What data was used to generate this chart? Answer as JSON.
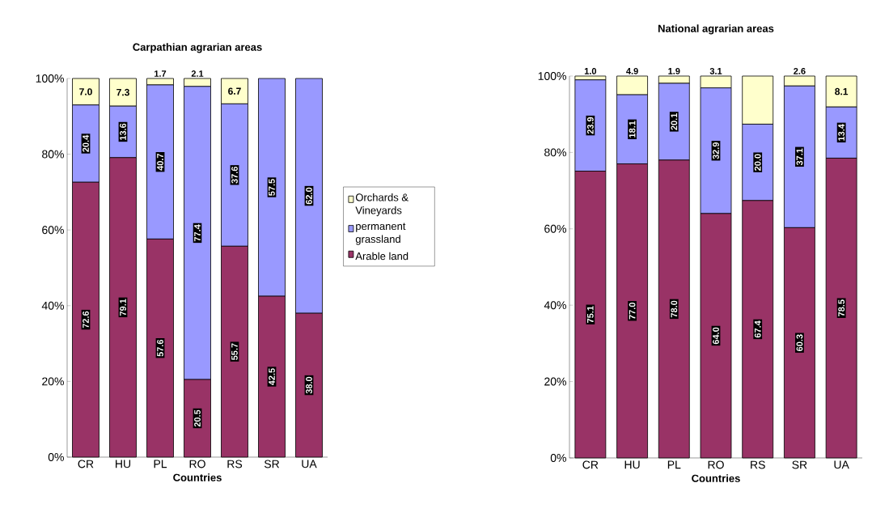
{
  "chart_data": [
    {
      "type": "bar",
      "stacked": true,
      "title": "Carpathian agrarian areas",
      "xlabel": "Countries",
      "categories": [
        "CR",
        "HU",
        "PL",
        "RO",
        "RS",
        "SR",
        "UA"
      ],
      "series": [
        {
          "name": "Arable land",
          "color": "#993366",
          "values": [
            72.6,
            79.1,
            57.6,
            20.5,
            55.7,
            42.5,
            38.0
          ],
          "value_labels": [
            "72.6",
            "79.1",
            "57.6",
            "20.5",
            "55.7",
            "42.5",
            "38.0"
          ]
        },
        {
          "name": "permanent grassland",
          "color": "#9999ff",
          "values": [
            20.4,
            13.6,
            40.7,
            77.4,
            37.6,
            57.5,
            62.0
          ],
          "value_labels": [
            "20.4",
            "13.6",
            "40.7",
            "77.4",
            "37.6",
            "57.5",
            "62.0"
          ]
        },
        {
          "name": "Orchards & Vineyards",
          "color": "#ffffcc",
          "values": [
            7.0,
            7.3,
            1.7,
            2.1,
            6.7,
            0,
            0
          ],
          "value_labels": [
            "7.0",
            "7.3",
            "1.7",
            "2.1",
            "6.7",
            null,
            null
          ]
        }
      ],
      "ylim": [
        0,
        100
      ],
      "yticks": [
        {
          "value": 0,
          "label": "0%"
        },
        {
          "value": 20,
          "label": "20%"
        },
        {
          "value": 40,
          "label": "40%"
        },
        {
          "value": 60,
          "label": "60%"
        },
        {
          "value": 80,
          "label": "80%"
        },
        {
          "value": 100,
          "label": "100%"
        }
      ],
      "legend": "right"
    },
    {
      "type": "bar",
      "stacked": true,
      "title": "National agrarian areas",
      "xlabel": "Countries",
      "categories": [
        "CR",
        "HU",
        "PL",
        "RO",
        "RS",
        "SR",
        "UA"
      ],
      "series": [
        {
          "color": "#993366",
          "values": [
            75.1,
            77.0,
            78.0,
            64.0,
            67.4,
            60.3,
            78.5
          ],
          "value_labels": [
            "75.1",
            "77.0",
            "78.0",
            "64.0",
            "67.4",
            "60.3",
            "78.5"
          ]
        },
        {
          "color": "#9999ff",
          "values": [
            23.9,
            18.1,
            20.1,
            32.9,
            20.0,
            37.1,
            13.4
          ],
          "value_labels": [
            "23.9",
            "18.1",
            "20.1",
            "32.9",
            "20.0",
            "37.1",
            "13.4"
          ]
        },
        {
          "color": "#ffffcc",
          "values": [
            1.0,
            4.9,
            1.9,
            3.1,
            12.6,
            2.6,
            8.1
          ],
          "value_labels": [
            "1.0",
            "4.9",
            "1.9",
            "3.1",
            null,
            "2.6",
            "8.1"
          ]
        }
      ],
      "ylim": [
        0,
        100
      ],
      "yticks": [
        {
          "value": 0,
          "label": "0%"
        },
        {
          "value": 20,
          "label": "20%"
        },
        {
          "value": 40,
          "label": "40%"
        },
        {
          "value": 60,
          "label": "60%"
        },
        {
          "value": 80,
          "label": "80%"
        },
        {
          "value": 100,
          "label": "100%"
        }
      ]
    }
  ]
}
